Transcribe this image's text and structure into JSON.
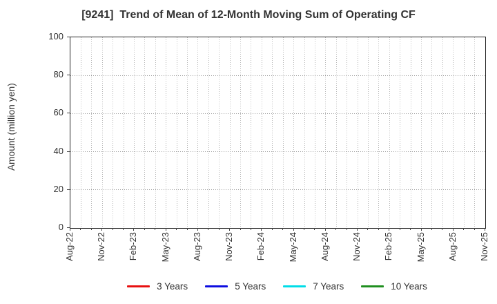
{
  "figure": {
    "title": "[9241]  Trend of Mean of 12-Month Moving Sum of Operating CF",
    "ylabel": "Amount (million yen)"
  },
  "legend": {
    "items": [
      {
        "label": "3 Years",
        "color": "#e81010"
      },
      {
        "label": "5 Years",
        "color": "#0d0de0"
      },
      {
        "label": "7 Years",
        "color": "#00dde8"
      },
      {
        "label": "10 Years",
        "color": "#1f8f1f"
      }
    ]
  },
  "chart_data": {
    "type": "line",
    "title": "[9241]  Trend of Mean of 12-Month Moving Sum of Operating CF",
    "xlabel": "",
    "ylabel": "Amount (million yen)",
    "ylim": [
      0,
      100
    ],
    "y_ticks": [
      0,
      20,
      40,
      60,
      80,
      100
    ],
    "x_range": [
      "Aug-2022",
      "Nov-2025"
    ],
    "months_total": 39,
    "x_minor_interval_months": 1,
    "x_major_interval_months": 3,
    "x_tick_labels": [
      "Aug-22",
      "Nov-22",
      "Feb-23",
      "May-23",
      "Aug-23",
      "Nov-23",
      "Feb-24",
      "May-24",
      "Aug-24",
      "Nov-24",
      "Feb-25",
      "May-25",
      "Aug-25",
      "Nov-25"
    ],
    "grid": true,
    "grid_style": "dotted",
    "legend_position": "bottom",
    "series": [
      {
        "name": "3 Years",
        "color": "#e81010",
        "values": []
      },
      {
        "name": "5 Years",
        "color": "#0d0de0",
        "values": []
      },
      {
        "name": "7 Years",
        "color": "#00dde8",
        "values": []
      },
      {
        "name": "10 Years",
        "color": "#1f8f1f",
        "values": []
      }
    ],
    "note": "No data lines are visible in the plotted range; chart area is empty grid."
  }
}
